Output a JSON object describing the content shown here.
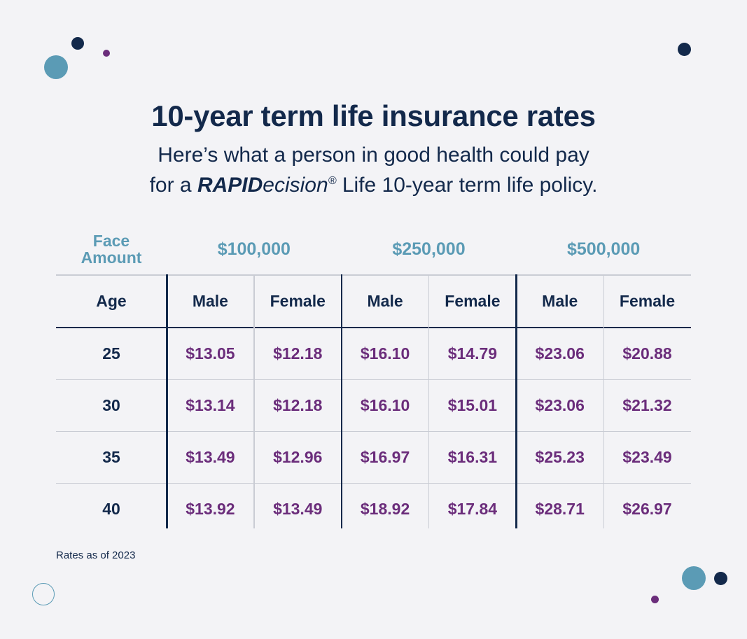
{
  "header": {
    "title": "10-year term life insurance rates",
    "subtitle_line1": "Here’s what a person in good health could pay",
    "subtitle_line2": {
      "prefix": "for a",
      "brand_bold": "RAPID",
      "brand_rest": "ecision",
      "mark": "®",
      "suffix": "Life 10-year term life policy."
    }
  },
  "table": {
    "face_amount_label": "Face Amount",
    "amounts": [
      "$100,000",
      "$250,000",
      "$500,000"
    ],
    "columns": [
      "Age",
      "Male",
      "Female",
      "Male",
      "Female",
      "Male",
      "Female"
    ],
    "rows": [
      [
        "25",
        "$13.05",
        "$12.18",
        "$16.10",
        "$14.79",
        "$23.06",
        "$20.88"
      ],
      [
        "30",
        "$13.14",
        "$12.18",
        "$16.10",
        "$15.01",
        "$23.06",
        "$21.32"
      ],
      [
        "35",
        "$13.49",
        "$12.96",
        "$16.97",
        "$16.31",
        "$25.23",
        "$23.49"
      ],
      [
        "40",
        "$13.92",
        "$13.49",
        "$18.92",
        "$17.84",
        "$28.71",
        "$26.97"
      ]
    ]
  },
  "footnote": "Rates as of 2023"
}
